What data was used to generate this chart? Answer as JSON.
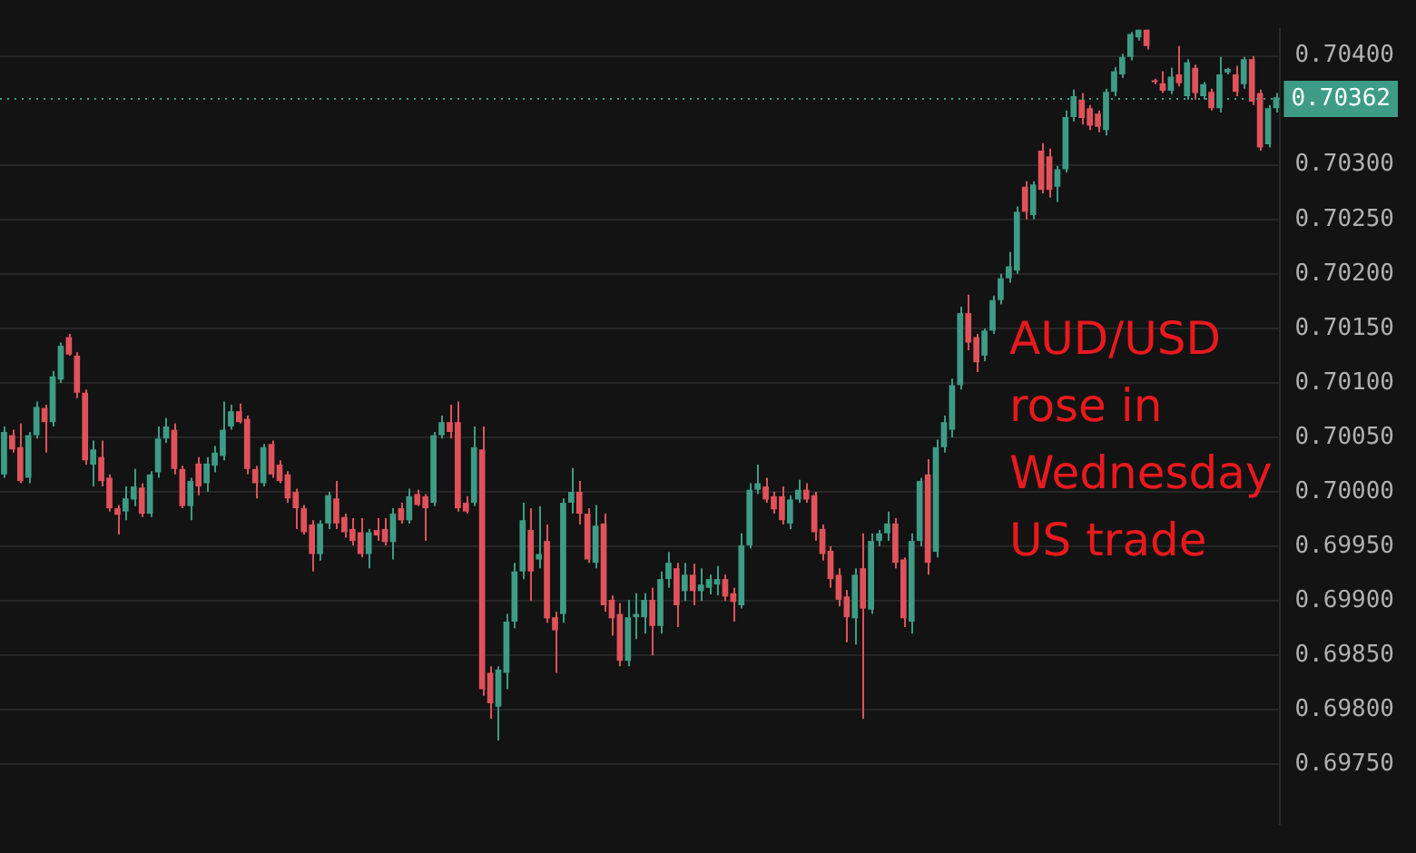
{
  "chart_data": {
    "type": "candlestick",
    "categories": [
      null,
      null,
      null,
      null,
      null,
      null,
      null,
      null,
      null,
      null,
      null,
      null,
      null,
      null,
      null,
      null,
      null,
      null,
      null,
      null,
      null,
      null,
      null,
      null,
      null,
      null,
      null,
      null,
      null,
      null,
      null,
      null,
      null,
      null,
      null,
      null,
      null,
      null,
      null,
      null,
      null,
      null,
      null,
      null,
      null,
      null,
      null,
      null,
      null,
      null,
      null,
      null,
      null,
      null,
      null,
      null,
      null,
      null,
      null,
      null,
      null,
      null,
      null,
      null,
      null,
      null,
      null,
      null,
      null,
      null,
      null,
      null,
      null,
      null,
      null,
      null,
      null,
      null,
      null,
      null,
      null,
      null,
      null,
      null,
      null,
      null,
      null,
      null,
      null,
      null,
      null,
      null,
      null,
      null,
      null,
      null,
      null,
      null,
      null,
      null,
      null,
      null,
      null,
      null,
      null,
      null,
      null,
      null,
      null,
      null,
      null,
      null,
      null,
      null,
      null,
      null,
      null,
      null,
      null,
      null,
      null,
      null,
      null,
      null,
      null,
      null,
      null,
      null,
      null,
      null,
      null,
      null,
      null,
      null,
      null,
      null,
      null,
      null,
      null,
      null,
      null,
      null,
      null,
      null,
      null,
      null,
      null,
      null,
      null,
      null,
      null,
      null,
      null,
      null,
      null,
      null,
      null,
      null
    ],
    "ohlc": [
      [
        0.70016,
        0.7006,
        0.70013,
        0.70055
      ],
      [
        0.70052,
        0.70057,
        0.70036,
        0.70039
      ],
      [
        0.70041,
        0.70063,
        0.70008,
        0.7001
      ],
      [
        0.70013,
        0.70055,
        0.70008,
        0.70052
      ],
      [
        0.70052,
        0.70083,
        0.70049,
        0.70078
      ],
      [
        0.70077,
        0.7008,
        0.70036,
        0.70064
      ],
      [
        0.70064,
        0.70111,
        0.7006,
        0.70106
      ],
      [
        0.70103,
        0.70137,
        0.701,
        0.70134
      ],
      [
        0.70142,
        0.70145,
        0.70125,
        0.70126
      ],
      [
        0.70125,
        0.70128,
        0.70086,
        0.70091
      ],
      [
        0.70091,
        0.70094,
        0.70025,
        0.70029
      ],
      [
        0.70025,
        0.70047,
        0.70005,
        0.70039
      ],
      [
        0.70032,
        0.70047,
        0.70005,
        0.7001
      ],
      [
        0.70013,
        0.70016,
        0.69982,
        0.69985
      ],
      [
        0.69985,
        0.69988,
        0.69961,
        0.69979
      ],
      [
        0.69982,
        0.70005,
        0.69974,
        0.69994
      ],
      [
        0.69993,
        0.70021,
        0.69987,
        0.70005
      ],
      [
        0.70004,
        0.70008,
        0.69977,
        0.6998
      ],
      [
        0.6998,
        0.70019,
        0.69977,
        0.70016
      ],
      [
        0.70018,
        0.7006,
        0.70013,
        0.70049
      ],
      [
        0.70049,
        0.70068,
        0.70045,
        0.7006
      ],
      [
        0.70057,
        0.70063,
        0.70016,
        0.70021
      ],
      [
        0.70021,
        0.70024,
        0.69985,
        0.69987
      ],
      [
        0.69987,
        0.70013,
        0.69974,
        0.7001
      ],
      [
        0.70026,
        0.70032,
        0.69997,
        0.70005
      ],
      [
        0.70008,
        0.70032,
        0.7,
        0.70026
      ],
      [
        0.70024,
        0.70042,
        0.70018,
        0.70036
      ],
      [
        0.70033,
        0.70083,
        0.70029,
        0.70057
      ],
      [
        0.7006,
        0.7008,
        0.70057,
        0.70074
      ],
      [
        0.70074,
        0.70081,
        0.70063,
        0.70064
      ],
      [
        0.70067,
        0.7007,
        0.70016,
        0.70021
      ],
      [
        0.70021,
        0.70024,
        0.69994,
        0.70008
      ],
      [
        0.70008,
        0.70044,
        0.70005,
        0.70041
      ],
      [
        0.70044,
        0.70047,
        0.70013,
        0.70016
      ],
      [
        0.70025,
        0.70029,
        0.70008,
        0.7001
      ],
      [
        0.70016,
        0.70019,
        0.6999,
        0.69994
      ],
      [
        0.7,
        0.70003,
        0.69966,
        0.69985
      ],
      [
        0.69985,
        0.69988,
        0.69961,
        0.69963
      ],
      [
        0.6997,
        0.69974,
        0.69927,
        0.69943
      ],
      [
        0.69943,
        0.69974,
        0.69937,
        0.69971
      ],
      [
        0.69971,
        0.7,
        0.69966,
        0.69997
      ],
      [
        0.69994,
        0.7001,
        0.69966,
        0.69971
      ],
      [
        0.69977,
        0.6998,
        0.69958,
        0.69963
      ],
      [
        0.69966,
        0.69976,
        0.69951,
        0.69955
      ],
      [
        0.69963,
        0.69976,
        0.6994,
        0.69943
      ],
      [
        0.69943,
        0.69966,
        0.6993,
        0.69963
      ],
      [
        0.69965,
        0.69976,
        0.69955,
        0.6996
      ],
      [
        0.69966,
        0.69976,
        0.69951,
        0.69954
      ],
      [
        0.69954,
        0.69985,
        0.69938,
        0.6998
      ],
      [
        0.69985,
        0.6999,
        0.69971,
        0.69974
      ],
      [
        0.69974,
        0.70003,
        0.69971,
        0.69996
      ],
      [
        0.69998,
        0.70002,
        0.69987,
        0.69988
      ],
      [
        0.69996,
        0.69998,
        0.69955,
        0.69985
      ],
      [
        0.6999,
        0.70055,
        0.69987,
        0.70052
      ],
      [
        0.70052,
        0.7007,
        0.70049,
        0.70064
      ],
      [
        0.70064,
        0.7008,
        0.70049,
        0.70055
      ],
      [
        0.70064,
        0.70083,
        0.69982,
        0.69985
      ],
      [
        0.6999,
        0.69996,
        0.6998,
        0.69982
      ],
      [
        0.6999,
        0.7006,
        0.69987,
        0.70041
      ],
      [
        0.70039,
        0.7006,
        0.69813,
        0.69819
      ],
      [
        0.69834,
        0.6984,
        0.69792,
        0.69806
      ],
      [
        0.69803,
        0.6984,
        0.69772,
        0.69837
      ],
      [
        0.69834,
        0.69888,
        0.69819,
        0.69881
      ],
      [
        0.69881,
        0.69935,
        0.69875,
        0.69927
      ],
      [
        0.69927,
        0.6999,
        0.6992,
        0.69974
      ],
      [
        0.69965,
        0.69985,
        0.699,
        0.69927
      ],
      [
        0.69938,
        0.69987,
        0.6993,
        0.69943
      ],
      [
        0.69955,
        0.6997,
        0.6988,
        0.69884
      ],
      [
        0.69885,
        0.6989,
        0.69834,
        0.69873
      ],
      [
        0.69888,
        0.69994,
        0.6988,
        0.6999
      ],
      [
        0.6999,
        0.70022,
        0.6998,
        0.7
      ],
      [
        0.7,
        0.7001,
        0.6997,
        0.6998
      ],
      [
        0.6998,
        0.69985,
        0.69935,
        0.69938
      ],
      [
        0.69935,
        0.69988,
        0.6993,
        0.69969
      ],
      [
        0.69971,
        0.6998,
        0.6989,
        0.69896
      ],
      [
        0.69901,
        0.69905,
        0.69868,
        0.69884
      ],
      [
        0.69888,
        0.69898,
        0.6984,
        0.69845
      ],
      [
        0.69845,
        0.69901,
        0.6984,
        0.69885
      ],
      [
        0.69885,
        0.69907,
        0.69865,
        0.69888
      ],
      [
        0.69885,
        0.69907,
        0.6987,
        0.69901
      ],
      [
        0.69901,
        0.69912,
        0.6985,
        0.69877
      ],
      [
        0.69877,
        0.69927,
        0.6987,
        0.6992
      ],
      [
        0.6992,
        0.69945,
        0.69912,
        0.69935
      ],
      [
        0.6993,
        0.69935,
        0.69876,
        0.69896
      ],
      [
        0.69909,
        0.69935,
        0.699,
        0.69924
      ],
      [
        0.69924,
        0.69934,
        0.69896,
        0.69909
      ],
      [
        0.69909,
        0.6993,
        0.699,
        0.69915
      ],
      [
        0.69912,
        0.69924,
        0.69906,
        0.6992
      ],
      [
        0.69915,
        0.69932,
        0.69905,
        0.6992
      ],
      [
        0.6992,
        0.69924,
        0.699,
        0.69904
      ],
      [
        0.69907,
        0.69912,
        0.69881,
        0.69899
      ],
      [
        0.69896,
        0.69962,
        0.69893,
        0.69951
      ],
      [
        0.69951,
        0.70008,
        0.69948,
        0.70002
      ],
      [
        0.70002,
        0.70025,
        0.69998,
        0.70008
      ],
      [
        0.70005,
        0.70013,
        0.6999,
        0.69993
      ],
      [
        0.69996,
        0.7,
        0.6998,
        0.69984
      ],
      [
        0.69996,
        0.70005,
        0.6997,
        0.69974
      ],
      [
        0.69971,
        0.69997,
        0.69966,
        0.69993
      ],
      [
        0.69993,
        0.70011,
        0.6999,
        0.70002
      ],
      [
        0.70002,
        0.70008,
        0.6999,
        0.69993
      ],
      [
        0.69997,
        0.7,
        0.69955,
        0.69963
      ],
      [
        0.69966,
        0.6997,
        0.69937,
        0.69943
      ],
      [
        0.69946,
        0.6995,
        0.69912,
        0.6992
      ],
      [
        0.69924,
        0.6993,
        0.69895,
        0.69901
      ],
      [
        0.69904,
        0.6991,
        0.69862,
        0.69885
      ],
      [
        0.69884,
        0.6993,
        0.6986,
        0.69924
      ],
      [
        0.6993,
        0.69962,
        0.69792,
        0.69893
      ],
      [
        0.69892,
        0.69962,
        0.69888,
        0.69955
      ],
      [
        0.69955,
        0.69965,
        0.6995,
        0.69962
      ],
      [
        0.69962,
        0.69982,
        0.69955,
        0.69971
      ],
      [
        0.69971,
        0.69976,
        0.6993,
        0.69935
      ],
      [
        0.69938,
        0.6994,
        0.69876,
        0.69884
      ],
      [
        0.69881,
        0.69962,
        0.6987,
        0.69955
      ],
      [
        0.69955,
        0.70013,
        0.6995,
        0.7001
      ],
      [
        0.70016,
        0.7003,
        0.69924,
        0.69935
      ],
      [
        0.69945,
        0.70048,
        0.6994,
        0.70041
      ],
      [
        0.70041,
        0.7007,
        0.70036,
        0.70064
      ],
      [
        0.70057,
        0.70104,
        0.7005,
        0.70098
      ],
      [
        0.70098,
        0.7017,
        0.70094,
        0.70164
      ],
      [
        0.70164,
        0.70181,
        0.7013,
        0.70137
      ],
      [
        0.70142,
        0.70145,
        0.7011,
        0.70119
      ],
      [
        0.70125,
        0.7015,
        0.7012,
        0.70148
      ],
      [
        0.70148,
        0.7018,
        0.70145,
        0.70176
      ],
      [
        0.70176,
        0.702,
        0.70172,
        0.70196
      ],
      [
        0.70196,
        0.7022,
        0.70192,
        0.70207
      ],
      [
        0.70203,
        0.70262,
        0.702,
        0.70257
      ],
      [
        0.7028,
        0.70285,
        0.7025,
        0.70257
      ],
      [
        0.70254,
        0.70285,
        0.7025,
        0.70282
      ],
      [
        0.70313,
        0.7032,
        0.70274,
        0.70277
      ],
      [
        0.70308,
        0.70315,
        0.7027,
        0.70277
      ],
      [
        0.7028,
        0.70299,
        0.70266,
        0.70296
      ],
      [
        0.70296,
        0.7035,
        0.70293,
        0.70344
      ],
      [
        0.70344,
        0.70369,
        0.7034,
        0.70363
      ],
      [
        0.7036,
        0.70366,
        0.70337,
        0.70343
      ],
      [
        0.70352,
        0.70355,
        0.70332,
        0.70336
      ],
      [
        0.70347,
        0.7035,
        0.7033,
        0.70335
      ],
      [
        0.70332,
        0.7037,
        0.70327,
        0.70367
      ],
      [
        0.70367,
        0.7039,
        0.70363,
        0.70386
      ],
      [
        0.70383,
        0.70402,
        0.7038,
        0.70399
      ],
      [
        0.70399,
        0.70422,
        0.70396,
        0.7042
      ],
      [
        0.70417,
        0.70424,
        0.70414,
        0.70424
      ],
      [
        0.70424,
        0.70424,
        0.70406,
        0.70409
      ],
      [
        0.70377,
        0.70379,
        0.70374,
        0.70376
      ],
      [
        0.70375,
        0.70386,
        0.70366,
        0.70368
      ],
      [
        0.70368,
        0.70389,
        0.70365,
        0.70381
      ],
      [
        0.70383,
        0.70409,
        0.70372,
        0.70375
      ],
      [
        0.70363,
        0.70397,
        0.7036,
        0.70394
      ],
      [
        0.70389,
        0.70392,
        0.7036,
        0.70366
      ],
      [
        0.70363,
        0.70376,
        0.7036,
        0.70374
      ],
      [
        0.70367,
        0.7037,
        0.7035,
        0.70352
      ],
      [
        0.70352,
        0.70399,
        0.70348,
        0.70383
      ],
      [
        0.70385,
        0.70389,
        0.70383,
        0.70388
      ],
      [
        0.70383,
        0.70391,
        0.70363,
        0.70367
      ],
      [
        0.70374,
        0.70399,
        0.7037,
        0.70397
      ],
      [
        0.70397,
        0.704,
        0.70355,
        0.70358
      ],
      [
        0.70366,
        0.70369,
        0.70313,
        0.70316
      ],
      [
        0.70319,
        0.70355,
        0.70316,
        0.70352
      ],
      [
        0.70352,
        0.70366,
        0.70348,
        0.70362
      ]
    ],
    "colors": [
      "#3e9c86",
      "#e0525a",
      "#e0525a",
      "#3e9c86",
      "#3e9c86",
      "#e0525a",
      "#3e9c86",
      "#3e9c86",
      "#e0525a",
      "#e0525a",
      "#e0525a",
      "#3e9c86",
      "#e0525a",
      "#e0525a",
      "#e0525a",
      "#3e9c86",
      "#3e9c86",
      "#e0525a",
      "#3e9c86",
      "#3e9c86",
      "#3e9c86",
      "#e0525a",
      "#e0525a",
      "#3e9c86",
      "#e0525a",
      "#3e9c86",
      "#3e9c86",
      "#3e9c86",
      "#3e9c86",
      "#e0525a",
      "#e0525a",
      "#e0525a",
      "#3e9c86",
      "#e0525a",
      "#e0525a",
      "#e0525a",
      "#e0525a",
      "#e0525a",
      "#e0525a",
      "#3e9c86",
      "#3e9c86",
      "#e0525a",
      "#e0525a",
      "#e0525a",
      "#e0525a",
      "#3e9c86",
      "#e0525a",
      "#e0525a",
      "#3e9c86",
      "#e0525a",
      "#3e9c86",
      "#e0525a",
      "#e0525a",
      "#3e9c86",
      "#3e9c86",
      "#e0525a",
      "#e0525a",
      "#e0525a",
      "#3e9c86",
      "#e0525a",
      "#e0525a",
      "#3e9c86",
      "#3e9c86",
      "#3e9c86",
      "#3e9c86",
      "#e0525a",
      "#3e9c86",
      "#e0525a",
      "#e0525a",
      "#3e9c86",
      "#3e9c86",
      "#e0525a",
      "#e0525a",
      "#3e9c86",
      "#e0525a",
      "#e0525a",
      "#e0525a",
      "#3e9c86",
      "#3e9c86",
      "#3e9c86",
      "#e0525a",
      "#3e9c86",
      "#3e9c86",
      "#e0525a",
      "#3e9c86",
      "#e0525a",
      "#3e9c86",
      "#3e9c86",
      "#3e9c86",
      "#e0525a",
      "#e0525a",
      "#3e9c86",
      "#3e9c86",
      "#3e9c86",
      "#e0525a",
      "#e0525a",
      "#e0525a",
      "#3e9c86",
      "#3e9c86",
      "#e0525a",
      "#e0525a",
      "#e0525a",
      "#e0525a",
      "#e0525a",
      "#e0525a",
      "#3e9c86",
      "#e0525a",
      "#3e9c86",
      "#3e9c86",
      "#3e9c86",
      "#e0525a",
      "#e0525a",
      "#3e9c86",
      "#3e9c86",
      "#e0525a",
      "#3e9c86",
      "#3e9c86",
      "#3e9c86",
      "#3e9c86",
      "#e0525a",
      "#e0525a",
      "#3e9c86",
      "#3e9c86",
      "#3e9c86",
      "#3e9c86",
      "#3e9c86",
      "#e0525a",
      "#3e9c86",
      "#e0525a",
      "#e0525a",
      "#3e9c86",
      "#3e9c86",
      "#3e9c86",
      "#e0525a",
      "#e0525a",
      "#e0525a",
      "#3e9c86",
      "#3e9c86",
      "#3e9c86",
      "#3e9c86",
      "#3e9c86",
      "#e0525a",
      "#e0525a",
      "#e0525a",
      "#3e9c86",
      "#e0525a",
      "#3e9c86",
      "#e0525a",
      "#3e9c86",
      "#e0525a",
      "#3e9c86",
      "#3e9c86",
      "#e0525a",
      "#3e9c86",
      "#e0525a",
      "#e0525a",
      "#3e9c86",
      "#3e9c86"
    ],
    "ylim": [
      0.69695,
      0.70425
    ],
    "yticks": [
      {
        "value": 0.6975,
        "label": "0.69750"
      },
      {
        "value": 0.698,
        "label": "0.69800"
      },
      {
        "value": 0.6985,
        "label": "0.69850"
      },
      {
        "value": 0.699,
        "label": "0.69900"
      },
      {
        "value": 0.6995,
        "label": "0.69950"
      },
      {
        "value": 0.7,
        "label": "0.70000"
      },
      {
        "value": 0.7005,
        "label": "0.70050"
      },
      {
        "value": 0.701,
        "label": "0.70100"
      },
      {
        "value": 0.7015,
        "label": "0.70150"
      },
      {
        "value": 0.702,
        "label": "0.70200"
      },
      {
        "value": 0.7025,
        "label": "0.70250"
      },
      {
        "value": 0.703,
        "label": "0.70300"
      },
      {
        "value": 0.704,
        "label": "0.70400"
      }
    ],
    "grid": "y",
    "tick_labels": "y",
    "ref_lines": [
      {
        "axis": "y",
        "value": 0.70362,
        "label": "0.70362",
        "color": "#3e9c86",
        "line_style": "dotted"
      }
    ],
    "annotations": [
      "AUD/USD\nrose in\nWednesday\nUS trade"
    ]
  }
}
